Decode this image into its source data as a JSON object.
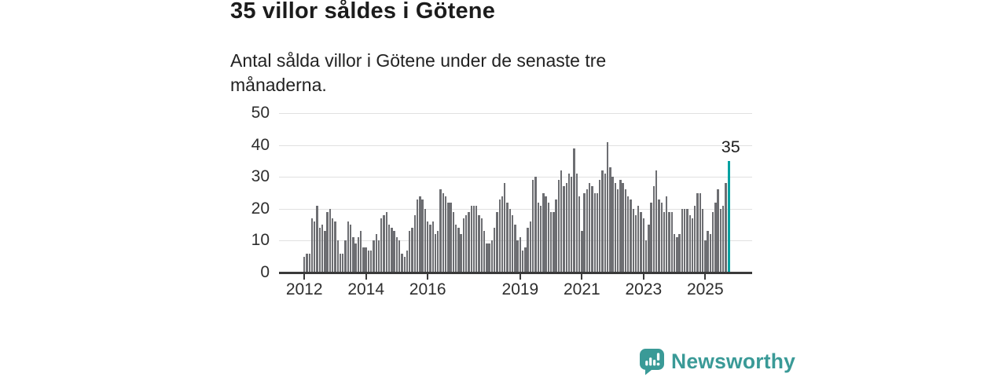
{
  "header": {
    "title": "35 villor såldes i Götene",
    "subtitle": "Antal sålda villor i Götene under de senaste tre månaderna."
  },
  "chart_data": {
    "type": "bar",
    "title": "35 villor såldes i Götene",
    "subtitle": "Antal sålda villor i Götene under de senaste tre månaderna.",
    "frequency": "monthly",
    "start": "2012-01",
    "end": "2025-10",
    "ylim": [
      0,
      50
    ],
    "y_ticks": [
      0,
      10,
      20,
      30,
      40,
      50
    ],
    "x_ticks": [
      {
        "label": "2012",
        "month_index": 0
      },
      {
        "label": "2014",
        "month_index": 24
      },
      {
        "label": "2016",
        "month_index": 48
      },
      {
        "label": "2019",
        "month_index": 84
      },
      {
        "label": "2021",
        "month_index": 108
      },
      {
        "label": "2023",
        "month_index": 132
      },
      {
        "label": "2025",
        "month_index": 156
      }
    ],
    "values": [
      5,
      6,
      6,
      17,
      16,
      21,
      14,
      15,
      13,
      19,
      20,
      17,
      16,
      10,
      6,
      6,
      10,
      16,
      15,
      11,
      9,
      11,
      13,
      8,
      8,
      7,
      7,
      10,
      12,
      10,
      17,
      18,
      19,
      15,
      14,
      13,
      11,
      10,
      6,
      5,
      7,
      13,
      14,
      18,
      23,
      24,
      23,
      20,
      16,
      15,
      16,
      12,
      13,
      26,
      25,
      24,
      22,
      22,
      19,
      15,
      14,
      12,
      17,
      18,
      19,
      21,
      21,
      21,
      18,
      17,
      13,
      9,
      9,
      10,
      14,
      19,
      23,
      24,
      28,
      22,
      20,
      18,
      15,
      10,
      11,
      7,
      8,
      14,
      16,
      29,
      30,
      22,
      21,
      25,
      24,
      22,
      19,
      19,
      23,
      29,
      32,
      27,
      28,
      31,
      30,
      39,
      31,
      24,
      13,
      25,
      26,
      28,
      27,
      25,
      25,
      29,
      32,
      31,
      41,
      33,
      30,
      28,
      26,
      29,
      28,
      26,
      24,
      23,
      20,
      18,
      21,
      19,
      17,
      10,
      15,
      22,
      27,
      32,
      23,
      22,
      19,
      24,
      19,
      19,
      12,
      11,
      12,
      20,
      20,
      20,
      18,
      17,
      21,
      25,
      25,
      20,
      10,
      13,
      12,
      19,
      22,
      26,
      20,
      21,
      28,
      35
    ],
    "highlight_last": true,
    "annotation": {
      "text": "35",
      "value": 35
    },
    "legend": null,
    "grid": true,
    "colors": {
      "bar": "#6d6e72",
      "highlight": "#00a1a1",
      "grid": "#e1e1e1",
      "axis": "#3a3a3a",
      "tick_text": "#2e2e2e"
    }
  },
  "footer": {
    "brand": "Newsworthy",
    "brand_color": "#3a9a97"
  }
}
